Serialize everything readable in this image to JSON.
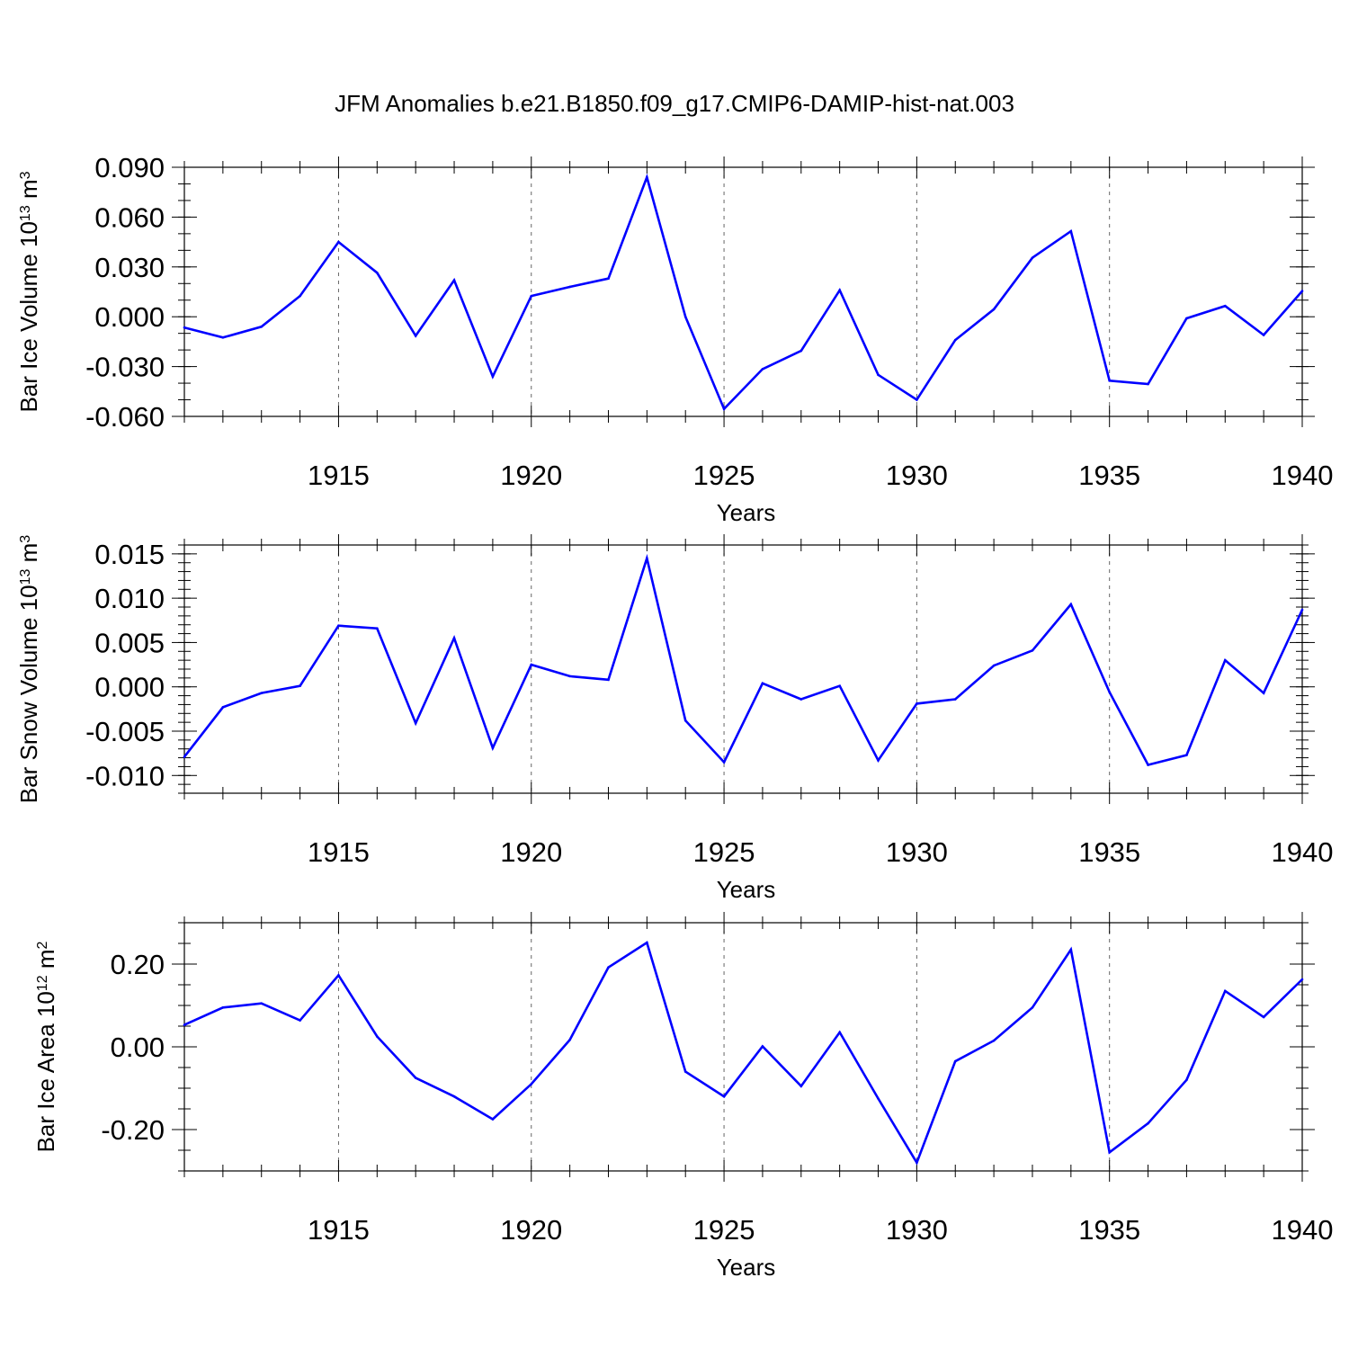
{
  "title": "JFM Anomalies b.e21.B1850.f09_g17.CMIP6-DAMIP-hist-nat.003",
  "colors": {
    "line": "#0000ff"
  },
  "chart_data": [
    {
      "type": "line",
      "xlabel": "Years",
      "ylabel": {
        "prefix": "Bar Ice Volume 10",
        "exp": "13",
        "unit": " m",
        "unit_exp": "3"
      },
      "xlim": [
        1911,
        1940
      ],
      "ylim": [
        -0.06,
        0.09
      ],
      "yticks": [
        -0.06,
        -0.03,
        0.0,
        0.03,
        0.06,
        0.09
      ],
      "ytick_labels": [
        "-0.060",
        "-0.030",
        "0.000",
        "0.030",
        "0.060",
        "0.090"
      ],
      "yminor_step": 0.01,
      "xticks": [
        1915,
        1920,
        1925,
        1930,
        1935,
        1940
      ],
      "xtick_labels": [
        "1915",
        "1920",
        "1925",
        "1930",
        "1935",
        "1940"
      ],
      "x": [
        1911,
        1912,
        1913,
        1914,
        1915,
        1916,
        1917,
        1918,
        1919,
        1920,
        1921,
        1922,
        1923,
        1924,
        1925,
        1926,
        1927,
        1928,
        1929,
        1930,
        1931,
        1932,
        1933,
        1934,
        1935,
        1936,
        1937,
        1938,
        1939,
        1940
      ],
      "y": [
        -0.0065,
        -0.0125,
        -0.006,
        0.0125,
        0.045,
        0.0265,
        -0.0115,
        0.022,
        -0.036,
        0.0125,
        0.018,
        0.023,
        0.084,
        0.0,
        -0.0555,
        -0.0315,
        -0.0205,
        0.016,
        -0.035,
        -0.05,
        -0.014,
        0.0045,
        0.0355,
        0.0515,
        -0.0385,
        -0.0405,
        -0.001,
        0.0065,
        -0.011,
        0.0155
      ]
    },
    {
      "type": "line",
      "xlabel": "Years",
      "ylabel": {
        "prefix": "Bar Snow Volume 10",
        "exp": "13",
        "unit": " m",
        "unit_exp": "3"
      },
      "xlim": [
        1911,
        1940
      ],
      "ylim": [
        -0.012,
        0.016
      ],
      "yticks": [
        -0.01,
        -0.005,
        0.0,
        0.005,
        0.01,
        0.015
      ],
      "ytick_labels": [
        "-0.010",
        "-0.005",
        "0.000",
        "0.005",
        "0.010",
        "0.015"
      ],
      "yminor_step": 0.001,
      "xticks": [
        1915,
        1920,
        1925,
        1930,
        1935,
        1940
      ],
      "xtick_labels": [
        "1915",
        "1920",
        "1925",
        "1930",
        "1935",
        "1940"
      ],
      "x": [
        1911,
        1912,
        1913,
        1914,
        1915,
        1916,
        1917,
        1918,
        1919,
        1920,
        1921,
        1922,
        1923,
        1924,
        1925,
        1926,
        1927,
        1928,
        1929,
        1930,
        1931,
        1932,
        1933,
        1934,
        1935,
        1936,
        1937,
        1938,
        1939,
        1940
      ],
      "y": [
        -0.0079,
        -0.0023,
        -0.0007,
        0.0001,
        0.0069,
        0.0066,
        -0.0041,
        0.0055,
        -0.0069,
        0.0025,
        0.0012,
        0.0008,
        0.0145,
        -0.0038,
        -0.0085,
        0.0004,
        -0.0014,
        0.0001,
        -0.0083,
        -0.0019,
        -0.0014,
        0.0024,
        0.0041,
        0.0093,
        -0.0006,
        -0.0088,
        -0.0077,
        0.003,
        -0.0007,
        0.0087
      ]
    },
    {
      "type": "line",
      "xlabel": "Years",
      "ylabel": {
        "prefix": "Bar Ice Area 10",
        "exp": "12",
        "unit": " m",
        "unit_exp": "2"
      },
      "xlim": [
        1911,
        1940
      ],
      "ylim": [
        -0.3,
        0.3
      ],
      "yticks": [
        -0.2,
        0.0,
        0.2
      ],
      "ytick_labels": [
        "-0.20",
        "0.00",
        "0.20"
      ],
      "yminor_step": 0.05,
      "xticks": [
        1915,
        1920,
        1925,
        1930,
        1935,
        1940
      ],
      "xtick_labels": [
        "1915",
        "1920",
        "1925",
        "1930",
        "1935",
        "1940"
      ],
      "x": [
        1911,
        1912,
        1913,
        1914,
        1915,
        1916,
        1917,
        1918,
        1919,
        1920,
        1921,
        1922,
        1923,
        1924,
        1925,
        1926,
        1927,
        1928,
        1929,
        1930,
        1931,
        1932,
        1933,
        1934,
        1935,
        1936,
        1937,
        1938,
        1939,
        1940
      ],
      "y": [
        0.053,
        0.095,
        0.105,
        0.064,
        0.173,
        0.025,
        -0.075,
        -0.12,
        -0.175,
        -0.09,
        0.017,
        0.192,
        0.252,
        -0.06,
        -0.12,
        0.001,
        -0.095,
        0.035,
        -0.125,
        -0.28,
        -0.035,
        0.015,
        0.095,
        0.235,
        -0.255,
        -0.185,
        -0.08,
        0.135,
        0.072,
        0.163
      ]
    }
  ]
}
